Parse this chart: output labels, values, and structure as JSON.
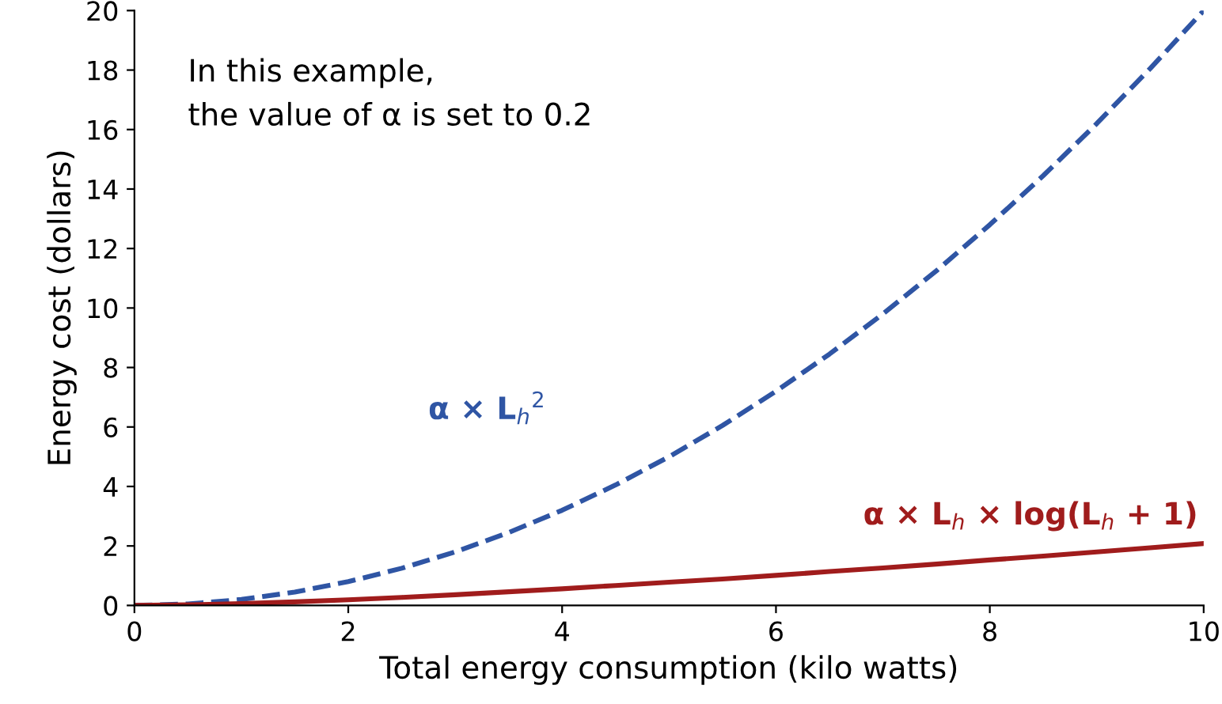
{
  "chart_data": {
    "type": "line",
    "xlabel": "Total energy consumption (kilo watts)",
    "ylabel": "Energy cost (dollars)",
    "x": [
      0,
      0.5,
      1,
      1.5,
      2,
      2.5,
      3,
      3.5,
      4,
      4.5,
      5,
      5.5,
      6,
      6.5,
      7,
      7.5,
      8,
      8.5,
      9,
      9.5,
      10
    ],
    "series": [
      {
        "name": "α × L$_{h}$$^{2}$",
        "color": "#2f55a4",
        "line_style": "dashed",
        "values": [
          0,
          0.05,
          0.2,
          0.45,
          0.8,
          1.25,
          1.8,
          2.45,
          3.2,
          4.05,
          5,
          6.05,
          7.2,
          8.45,
          9.8,
          11.25,
          12.8,
          14.45,
          16.2,
          18.05,
          20
        ]
      },
      {
        "name": "α × L$_{h}$ × log(L$_{h}$ + 1)",
        "color": "#a01c1c",
        "line_style": "solid",
        "values": [
          0,
          0.02,
          0.06,
          0.12,
          0.19,
          0.27,
          0.36,
          0.46,
          0.56,
          0.67,
          0.78,
          0.89,
          1.01,
          1.14,
          1.26,
          1.39,
          1.53,
          1.66,
          1.8,
          1.94,
          2.08
        ]
      }
    ],
    "xlim": [
      0,
      10
    ],
    "ylim": [
      0,
      20
    ],
    "xticks": [
      0,
      2,
      4,
      6,
      8,
      10
    ],
    "yticks": [
      0,
      2,
      4,
      6,
      8,
      10,
      12,
      14,
      16,
      18,
      20
    ],
    "annotations": [
      "In this example,\nthe value of α is set to 0.2"
    ],
    "grid": false,
    "legend": false
  }
}
